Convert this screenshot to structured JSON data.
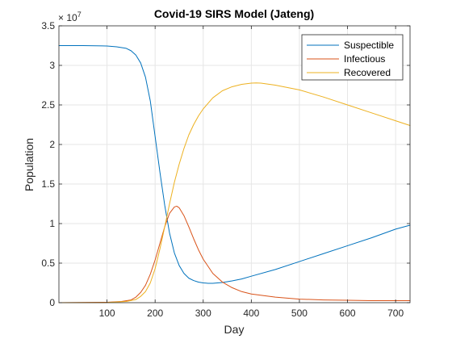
{
  "chart_data": {
    "type": "line",
    "title": "Covid-19 SIRS Model (Jateng)",
    "xlabel": "Day",
    "ylabel": "Population",
    "xlim": [
      0,
      730
    ],
    "ylim": [
      0,
      35000000
    ],
    "x_ticks": [
      100,
      200,
      300,
      400,
      500,
      600,
      700
    ],
    "x_tick_labels": [
      "100",
      "200",
      "300",
      "400",
      "500",
      "600",
      "700"
    ],
    "y_ticks": [
      0,
      5000000,
      10000000,
      15000000,
      20000000,
      25000000,
      30000000,
      35000000
    ],
    "y_tick_labels": [
      "0",
      "0.5",
      "1",
      "1.5",
      "2",
      "2.5",
      "3",
      "3.5"
    ],
    "y_exponent_base": "× 10",
    "y_exponent": "7",
    "grid": true,
    "legend_position": "top-right",
    "series": [
      {
        "name": "Suspectible",
        "color": "#0072BD",
        "x": [
          0,
          50,
          100,
          120,
          140,
          150,
          160,
          170,
          180,
          190,
          200,
          210,
          220,
          230,
          240,
          250,
          260,
          270,
          280,
          290,
          300,
          310,
          320,
          330,
          340,
          360,
          380,
          400,
          450,
          500,
          550,
          600,
          650,
          700,
          730
        ],
        "y": [
          32500000,
          32500000,
          32450000,
          32350000,
          32150000,
          31850000,
          31300000,
          30300000,
          28500000,
          25500000,
          21000000,
          16500000,
          12300000,
          8800000,
          6300000,
          4700000,
          3700000,
          3100000,
          2800000,
          2600000,
          2500000,
          2450000,
          2450000,
          2500000,
          2550000,
          2750000,
          3000000,
          3350000,
          4200000,
          5200000,
          6200000,
          7200000,
          8200000,
          9300000,
          9800000
        ]
      },
      {
        "name": "Infectious",
        "color": "#D95319",
        "x": [
          0,
          100,
          130,
          150,
          160,
          170,
          180,
          190,
          200,
          210,
          220,
          230,
          240,
          245,
          250,
          260,
          270,
          280,
          290,
          300,
          320,
          340,
          360,
          380,
          400,
          450,
          500,
          550,
          600,
          650,
          700,
          730
        ],
        "y": [
          0,
          50000,
          150000,
          350000,
          700000,
          1300000,
          2200000,
          3600000,
          5400000,
          7500000,
          9600000,
          11300000,
          12100000,
          12200000,
          12000000,
          11000000,
          9600000,
          8100000,
          6700000,
          5500000,
          3700000,
          2600000,
          1900000,
          1400000,
          1100000,
          700000,
          450000,
          350000,
          300000,
          250000,
          250000,
          250000
        ]
      },
      {
        "name": "Recovered",
        "color": "#EDB120",
        "x": [
          0,
          100,
          140,
          160,
          170,
          180,
          190,
          200,
          210,
          220,
          230,
          240,
          250,
          260,
          270,
          280,
          290,
          300,
          320,
          340,
          360,
          380,
          400,
          410,
          420,
          450,
          500,
          550,
          600,
          650,
          700,
          730
        ],
        "y": [
          0,
          20000,
          150000,
          400000,
          800000,
          1400000,
          2500000,
          4300000,
          6800000,
          9600000,
          12500000,
          15200000,
          17500000,
          19500000,
          21200000,
          22500000,
          23600000,
          24500000,
          25900000,
          26800000,
          27300000,
          27600000,
          27750000,
          27780000,
          27750000,
          27500000,
          26900000,
          26000000,
          25000000,
          24000000,
          23000000,
          22400000
        ]
      }
    ]
  }
}
